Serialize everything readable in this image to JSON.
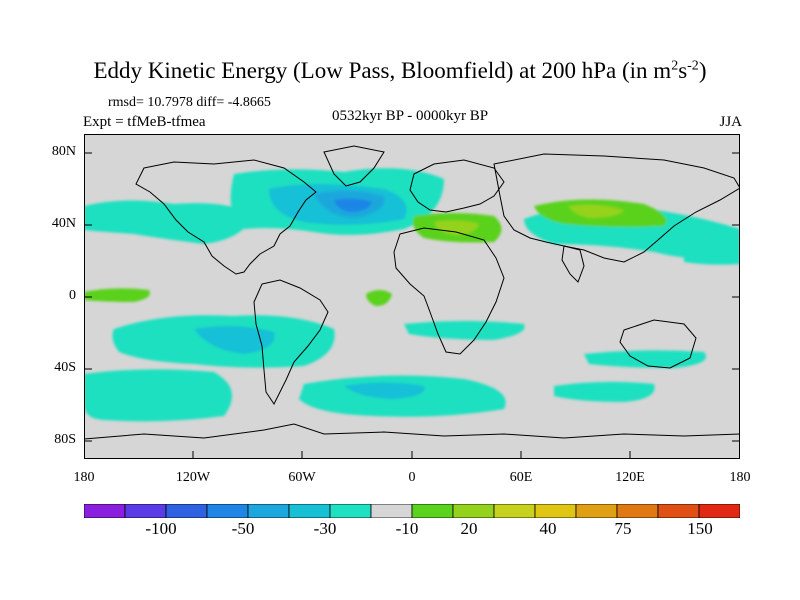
{
  "title": {
    "main": "Eddy Kinetic Energy (Low Pass, Bloomfield) at 200 hPa (in m",
    "exp1": "2",
    "mid": "s",
    "exp2": "-2",
    "close": ")"
  },
  "stats": "rmsd= 10.7978 diff= -4.8665",
  "experiment": "Expt = tfMeB-tfmea",
  "period": "0532kyr BP - 0000kyr BP",
  "season": "JJA",
  "lat_labels": [
    "80N",
    "40N",
    "0",
    "40S",
    "80S"
  ],
  "lon_labels": [
    "180",
    "120W",
    "60W",
    "0",
    "60E",
    "120E",
    "180"
  ],
  "colorbar": {
    "colors": [
      "#8a1fe0",
      "#5a3ce6",
      "#2f62e0",
      "#1f86e6",
      "#1ea7dc",
      "#18c0d6",
      "#1fe0c0",
      "#d6d6d6",
      "#5ad21e",
      "#94d21e",
      "#c6d21e",
      "#e0c614",
      "#e0a014",
      "#e07814",
      "#e05014",
      "#e02814"
    ],
    "labels": [
      "-100",
      "-50",
      "-30",
      "-10",
      "20",
      "40",
      "75",
      "150"
    ]
  },
  "colors": {
    "background": "#d6d6d6",
    "coast": "#000000"
  }
}
